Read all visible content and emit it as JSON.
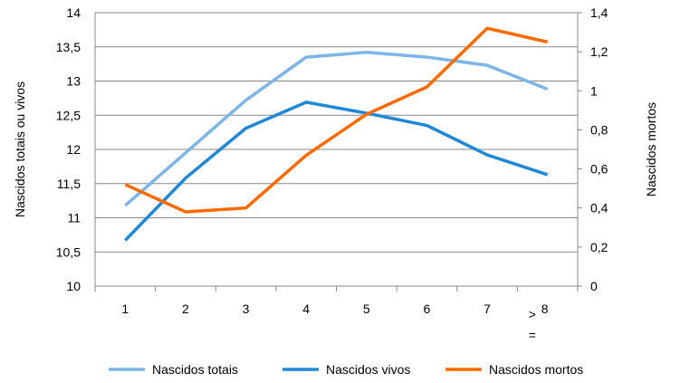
{
  "chart_data": {
    "type": "line",
    "title": "",
    "categories": [
      "1",
      "2",
      "3",
      "4",
      "5",
      "6",
      "7",
      "> ="
    ],
    "last_category_parts": [
      ">",
      "8",
      "="
    ],
    "ylabel": "Nascidos totais ou vivos",
    "y2label": "Nascidos mortos",
    "ylim": [
      10,
      14
    ],
    "y2lim": [
      0,
      1.4
    ],
    "yticks": [
      "10",
      "10,5",
      "11",
      "11,5",
      "12",
      "12,5",
      "13",
      "13,5",
      "14"
    ],
    "y2ticks": [
      "0",
      "0,2",
      "0,4",
      "0,6",
      "0,8",
      "1",
      "1,2",
      "1,4"
    ],
    "grid": true,
    "legend": "bottom",
    "series": [
      {
        "name": "Nascidos totais",
        "axis": "left",
        "color": "#7cb5e8",
        "values": [
          11.18,
          11.95,
          12.72,
          13.35,
          13.42,
          13.35,
          13.23,
          12.88
        ]
      },
      {
        "name": "Nascidos vivos",
        "axis": "left",
        "color": "#1f88d8",
        "values": [
          10.67,
          11.58,
          12.31,
          12.69,
          12.53,
          12.35,
          11.92,
          11.63
        ]
      },
      {
        "name": "Nascidos mortos",
        "axis": "right",
        "color": "#ff6a00",
        "values": [
          0.52,
          0.38,
          0.4,
          0.67,
          0.88,
          1.02,
          1.32,
          1.25
        ]
      }
    ]
  }
}
